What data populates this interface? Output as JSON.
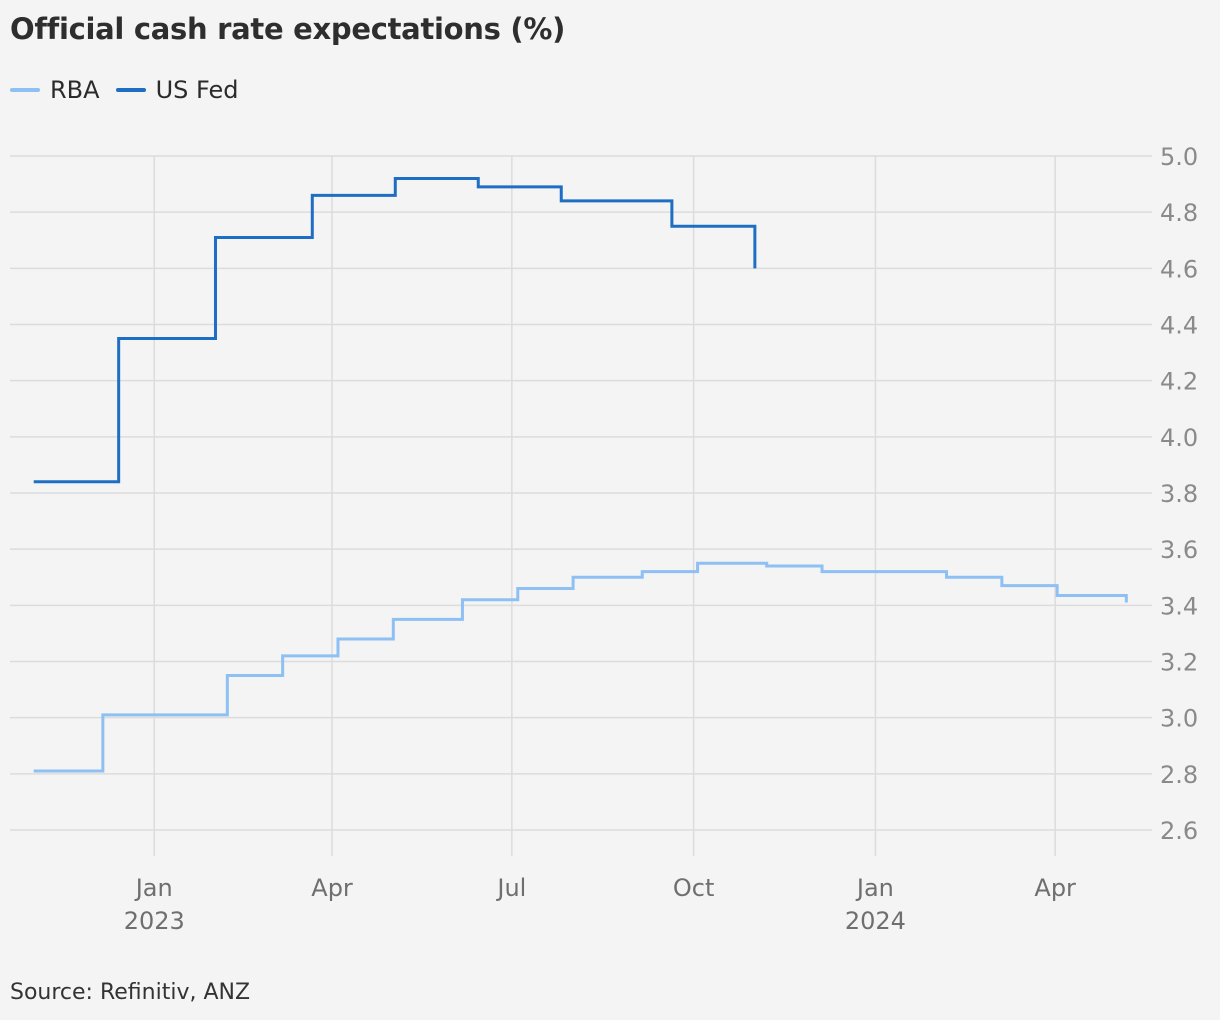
{
  "title": "Official cash rate expectations (%)",
  "source": "Source: Refinitiv, ANZ",
  "colors": {
    "rba": "#8ec0f3",
    "fed": "#1e6ec3",
    "grid": "#dcdcdc",
    "tick": "#8a8a8a"
  },
  "legend": [
    {
      "label": "RBA",
      "color": "#8ec0f3"
    },
    {
      "label": "US Fed",
      "color": "#1e6ec3"
    }
  ],
  "chart_data": {
    "type": "line",
    "step": true,
    "ylim": [
      2.6,
      5.0
    ],
    "yticks": [
      2.6,
      2.8,
      3.0,
      3.2,
      3.4,
      3.6,
      3.8,
      4.0,
      4.2,
      4.4,
      4.6,
      4.8,
      5.0
    ],
    "ytick_labels": [
      "2.6",
      "2.8",
      "3.0",
      "3.2",
      "3.4",
      "3.6",
      "3.8",
      "4.0",
      "4.2",
      "4.4",
      "4.6",
      "4.8",
      "5.0"
    ],
    "xlim": [
      "2022-10-20",
      "2024-05-20"
    ],
    "xticks": [
      {
        "date": "2023-01-01",
        "label": "Jan",
        "year": "2023"
      },
      {
        "date": "2023-04-01",
        "label": "Apr",
        "year": ""
      },
      {
        "date": "2023-07-01",
        "label": "Jul",
        "year": ""
      },
      {
        "date": "2023-10-01",
        "label": "Oct",
        "year": ""
      },
      {
        "date": "2024-01-01",
        "label": "Jan",
        "year": "2024"
      },
      {
        "date": "2024-04-01",
        "label": "Apr",
        "year": ""
      }
    ],
    "series": [
      {
        "name": "RBA",
        "color": "#8ec0f3",
        "points": [
          [
            "2022-11-01",
            2.81
          ],
          [
            "2022-12-06",
            3.01
          ],
          [
            "2023-02-07",
            3.15
          ],
          [
            "2023-03-07",
            3.22
          ],
          [
            "2023-04-04",
            3.28
          ],
          [
            "2023-05-02",
            3.35
          ],
          [
            "2023-06-06",
            3.42
          ],
          [
            "2023-07-04",
            3.46
          ],
          [
            "2023-08-01",
            3.5
          ],
          [
            "2023-09-05",
            3.52
          ],
          [
            "2023-10-03",
            3.55
          ],
          [
            "2023-11-07",
            3.54
          ],
          [
            "2023-12-05",
            3.52
          ],
          [
            "2024-02-06",
            3.5
          ],
          [
            "2024-03-05",
            3.47
          ],
          [
            "2024-04-02",
            3.435
          ],
          [
            "2024-05-07",
            3.41
          ]
        ]
      },
      {
        "name": "US Fed",
        "color": "#1e6ec3",
        "points": [
          [
            "2022-11-01",
            3.84
          ],
          [
            "2022-12-14",
            4.35
          ],
          [
            "2023-02-01",
            4.71
          ],
          [
            "2023-03-22",
            4.86
          ],
          [
            "2023-05-03",
            4.92
          ],
          [
            "2023-06-14",
            4.89
          ],
          [
            "2023-07-26",
            4.84
          ],
          [
            "2023-09-20",
            4.75
          ],
          [
            "2023-11-01",
            4.6
          ]
        ]
      }
    ]
  }
}
